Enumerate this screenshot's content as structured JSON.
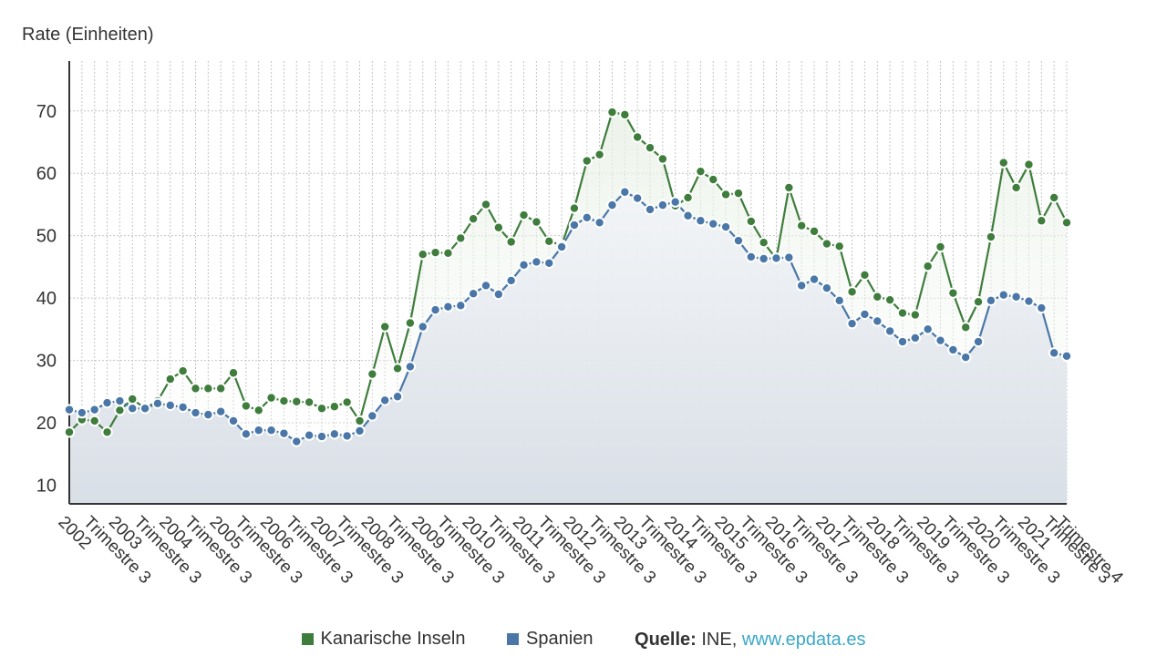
{
  "chart_data": {
    "type": "line",
    "ylabel": "Rate (Einheiten)",
    "ylim": [
      7,
      78
    ],
    "yticks": [
      10,
      20,
      30,
      40,
      50,
      60,
      70
    ],
    "grid": true,
    "legend_position": "bottom",
    "x_tick_labels": [
      "2002",
      "Trimestre 3",
      "2003",
      "Trimestre 3",
      "2004",
      "Trimestre 3",
      "2005",
      "Trimestre 3",
      "2006",
      "Trimestre 3",
      "2007",
      "Trimestre 3",
      "2008",
      "Trimestre 3",
      "2009",
      "Trimestre 3",
      "2010",
      "Trimestre 3",
      "2011",
      "Trimestre 3",
      "2012",
      "Trimestre 3",
      "2013",
      "Trimestre 3",
      "2014",
      "Trimestre 3",
      "2015",
      "Trimestre 3",
      "2016",
      "Trimestre 3",
      "2017",
      "Trimestre 3",
      "2018",
      "Trimestre 3",
      "2019",
      "Trimestre 3",
      "2020",
      "Trimestre 3",
      "2021",
      "Trimestre 3",
      "Trimestre 4"
    ],
    "series": [
      {
        "name": "Kanarische Inseln",
        "color": "#3f7d3c",
        "values": [
          18.5,
          20.5,
          20.3,
          18.5,
          22.0,
          23.8,
          22.3,
          23.5,
          27.0,
          28.3,
          25.5,
          25.5,
          25.5,
          28.0,
          22.7,
          22.0,
          24.0,
          23.5,
          23.4,
          23.3,
          22.3,
          22.6,
          23.3,
          20.3,
          27.8,
          35.4,
          28.7,
          36.0,
          47.0,
          47.3,
          47.2,
          49.6,
          52.7,
          55.0,
          51.3,
          49.0,
          53.3,
          52.2,
          49.1,
          48.5,
          54.4,
          62.0,
          63.0,
          69.8,
          69.4,
          65.8,
          64.1,
          62.3,
          54.8,
          56.1,
          60.3,
          59.0,
          56.6,
          56.8,
          52.3,
          48.9,
          46.3,
          57.7,
          51.6,
          50.7,
          48.7,
          48.3,
          41.0,
          43.7,
          40.2,
          39.7,
          37.6,
          37.3,
          45.1,
          48.2,
          40.8,
          35.3,
          39.4,
          49.8,
          61.7,
          57.7,
          61.4,
          52.4,
          56.1,
          52.1
        ]
      },
      {
        "name": "Spanien",
        "color": "#4a77a8",
        "values": [
          22.1,
          21.6,
          22.1,
          23.2,
          23.5,
          22.3,
          22.3,
          23.1,
          22.8,
          22.5,
          21.6,
          21.3,
          21.8,
          20.3,
          18.2,
          18.8,
          18.8,
          18.3,
          17.0,
          18.0,
          17.8,
          18.2,
          17.9,
          18.7,
          21.1,
          23.6,
          24.2,
          29.0,
          35.4,
          38.1,
          38.6,
          38.8,
          40.7,
          42.0,
          40.6,
          42.8,
          45.3,
          45.8,
          45.6,
          48.2,
          51.7,
          52.9,
          52.1,
          54.9,
          57.0,
          56.0,
          54.2,
          54.9,
          55.4,
          53.2,
          52.4,
          51.9,
          51.4,
          49.2,
          46.6,
          46.3,
          46.4,
          46.5,
          42.0,
          43.0,
          41.6,
          39.6,
          35.9,
          37.4,
          36.3,
          34.7,
          33.0,
          33.6,
          35.0,
          33.2,
          31.7,
          30.5,
          33.0,
          39.6,
          40.5,
          40.2,
          39.5,
          38.4,
          31.2,
          30.7
        ]
      }
    ]
  },
  "legend": {
    "items": [
      {
        "label": "Kanarische Inseln",
        "color": "#3f7d3c"
      },
      {
        "label": "Spanien",
        "color": "#4a77a8"
      }
    ],
    "source_label": "Quelle:",
    "source_text": "INE,",
    "source_link": "www.epdata.es"
  }
}
